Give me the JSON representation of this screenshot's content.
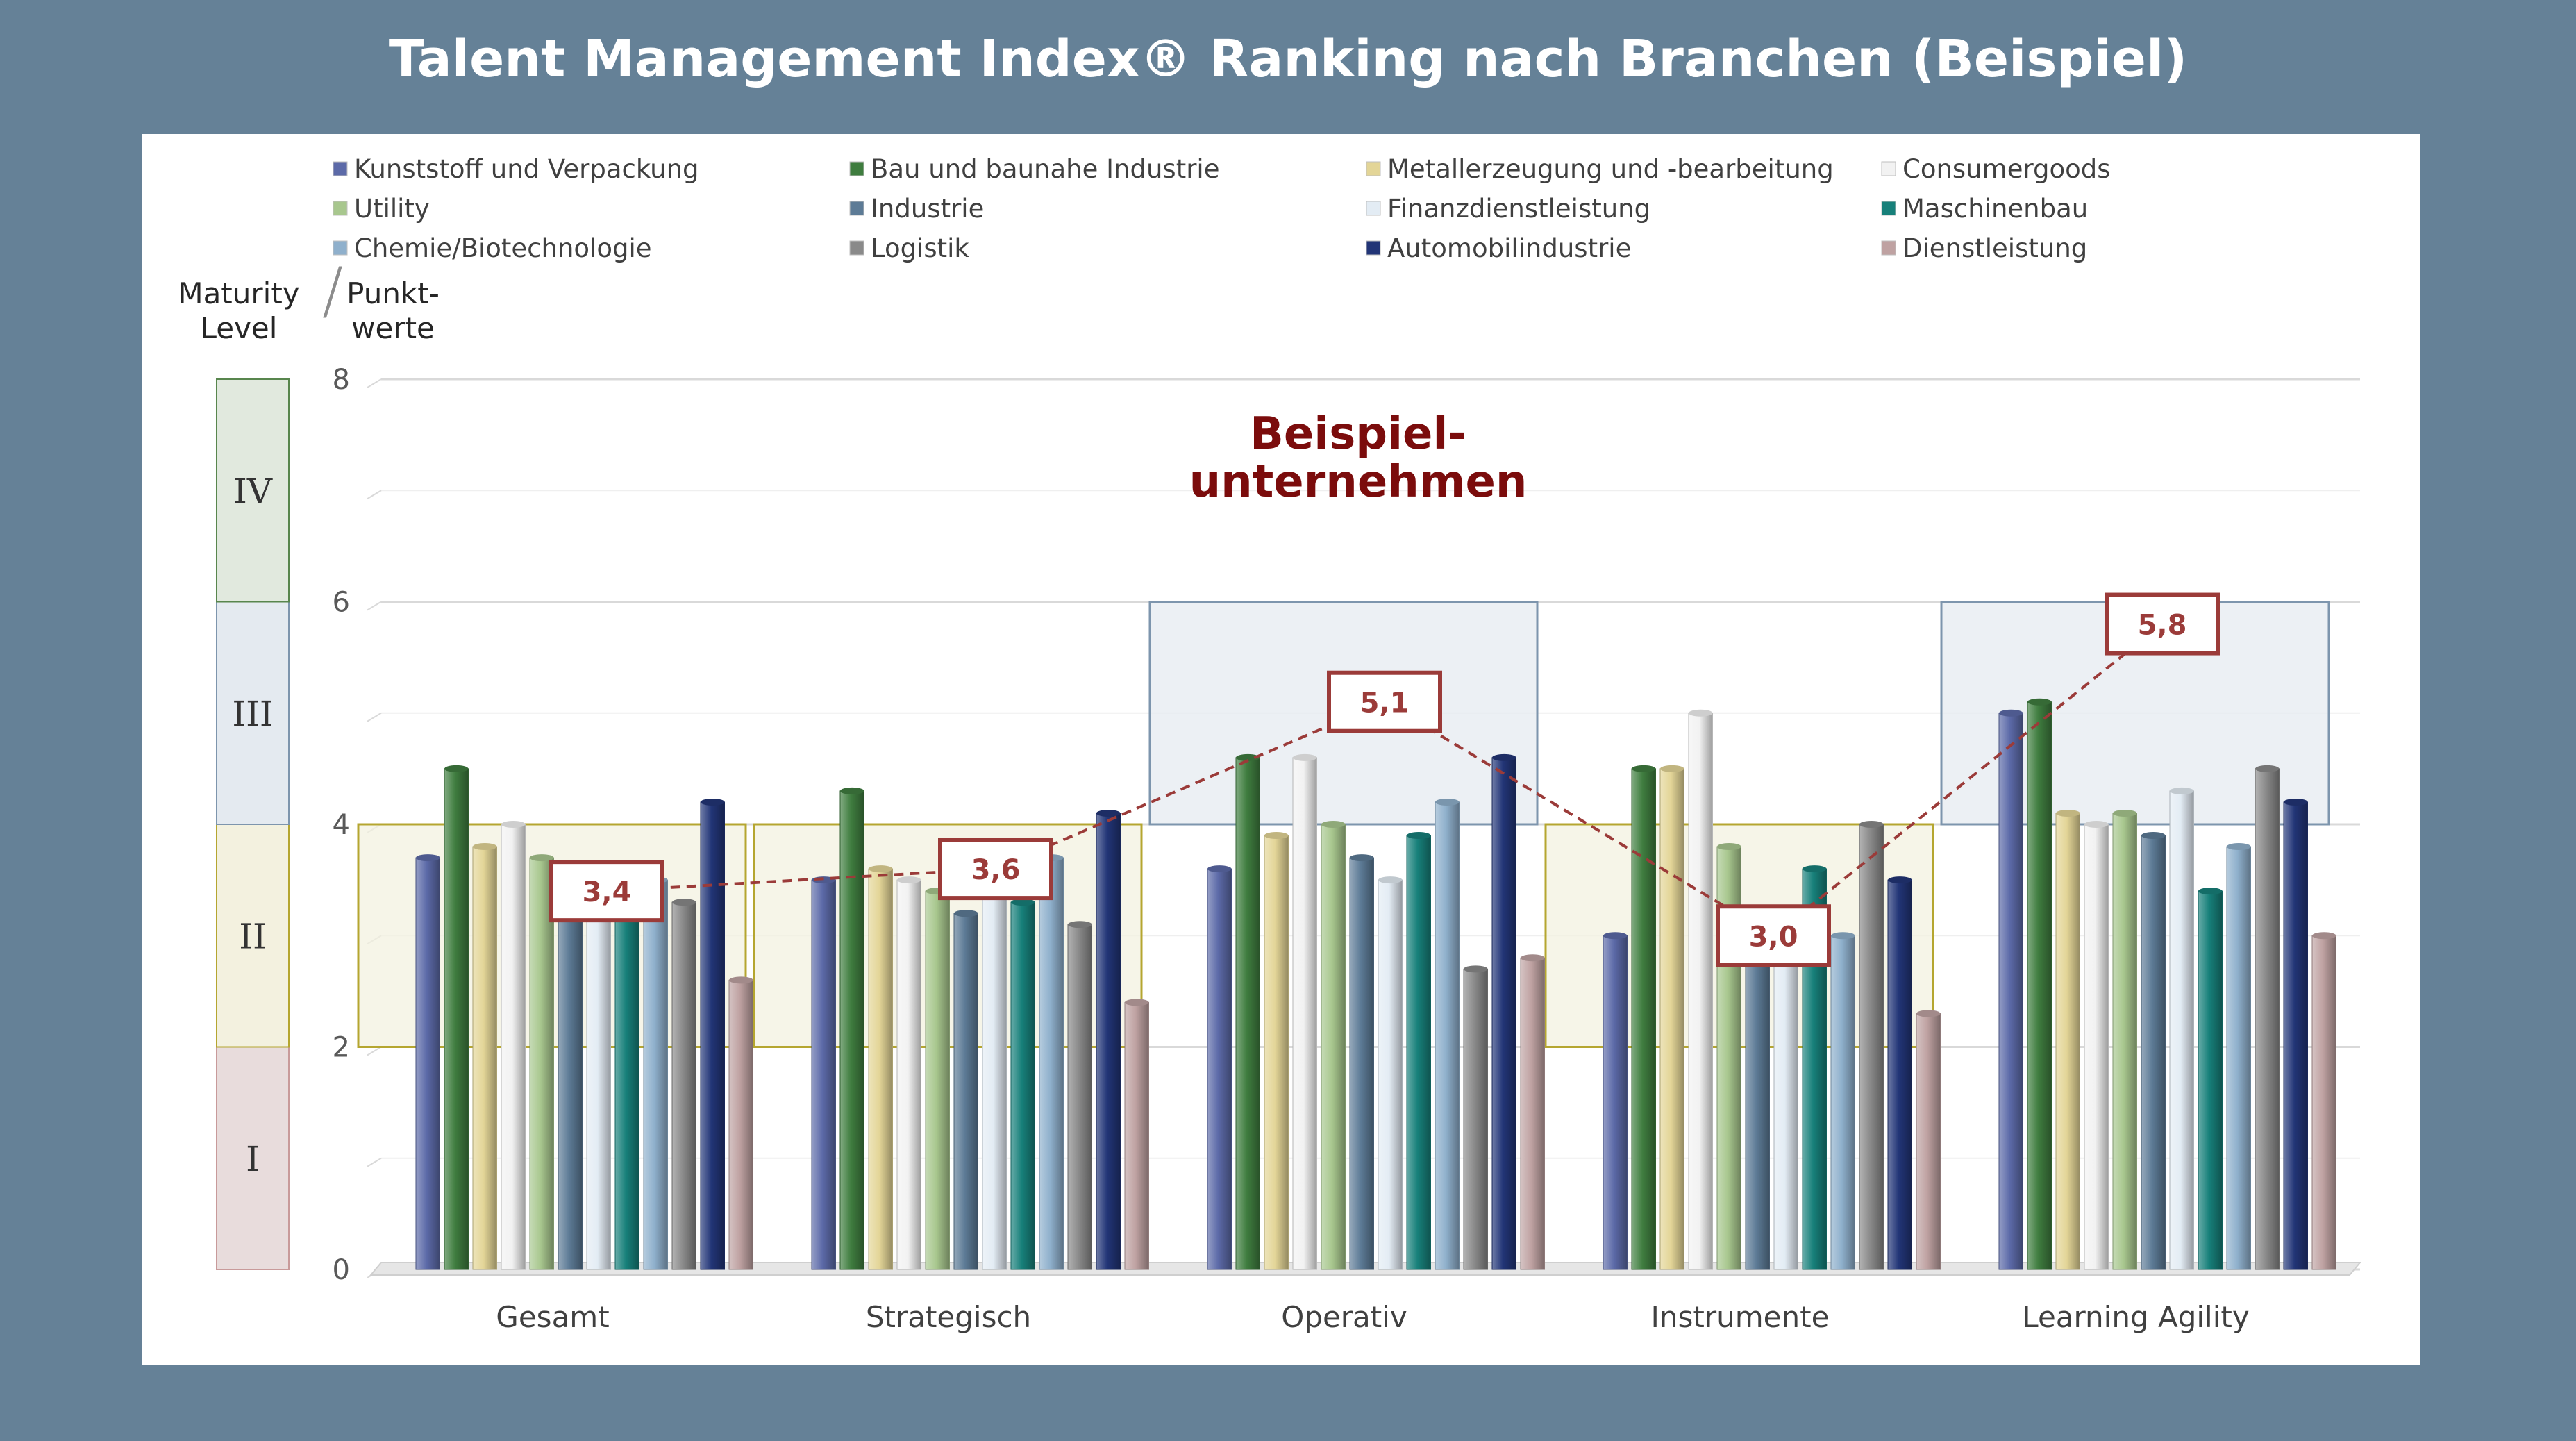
{
  "title": "Talent Management Index® Ranking nach Branchen (Beispiel)",
  "chart_data": {
    "type": "bar",
    "ylim": [
      0,
      8
    ],
    "yticks": [
      0,
      2,
      4,
      6,
      8
    ],
    "grid": true,
    "legend_position": "top",
    "axis_header_left": [
      "Maturity",
      "Level"
    ],
    "axis_header_separator": "/",
    "axis_header_right": [
      "Punkt-",
      "werte"
    ],
    "categories": [
      "Gesamt",
      "Strategisch",
      "Operativ",
      "Instrumente",
      "Learning Agility"
    ],
    "series": [
      {
        "name": "Kunststoff und Verpackung",
        "color": "#5c6aa8",
        "values": [
          3.7,
          3.5,
          3.6,
          3.0,
          5.0
        ]
      },
      {
        "name": "Bau und baunahe Industrie",
        "color": "#3f7d3f",
        "values": [
          4.5,
          4.3,
          4.6,
          4.5,
          5.1
        ]
      },
      {
        "name": "Metallerzeugung und -bearbeitung",
        "color": "#e3d597",
        "values": [
          3.8,
          3.6,
          3.9,
          4.5,
          4.1
        ]
      },
      {
        "name": "Consumergoods",
        "color": "#f2f2f2",
        "values": [
          4.0,
          3.5,
          4.6,
          5.0,
          4.0
        ]
      },
      {
        "name": "Utility",
        "color": "#a8c78e",
        "values": [
          3.7,
          3.4,
          4.0,
          3.8,
          4.1
        ]
      },
      {
        "name": "Industrie",
        "color": "#5d7b96",
        "values": [
          3.5,
          3.2,
          3.7,
          3.0,
          3.9
        ]
      },
      {
        "name": "Finanzdienstleistung",
        "color": "#e3ecf4",
        "values": [
          3.5,
          3.4,
          3.5,
          3.0,
          4.3
        ]
      },
      {
        "name": "Maschinenbau",
        "color": "#17807a",
        "values": [
          3.4,
          3.3,
          3.9,
          3.6,
          3.4
        ]
      },
      {
        "name": "Chemie/Biotechnologie",
        "color": "#8fb0cc",
        "values": [
          3.5,
          3.7,
          4.2,
          3.0,
          3.8
        ]
      },
      {
        "name": "Logistik",
        "color": "#8a8a8a",
        "values": [
          3.3,
          3.1,
          2.7,
          4.0,
          4.5
        ]
      },
      {
        "name": "Automobilindustrie",
        "color": "#223577",
        "values": [
          4.2,
          4.1,
          4.6,
          3.5,
          4.2
        ]
      },
      {
        "name": "Dienstleistung",
        "color": "#bfa2a2",
        "values": [
          2.6,
          2.4,
          2.8,
          2.3,
          3.0
        ]
      }
    ],
    "maturity_levels": [
      {
        "label": "I",
        "range": [
          0,
          2
        ],
        "color": "#e8dcdc",
        "border": "#c89a9a"
      },
      {
        "label": "II",
        "range": [
          2,
          4
        ],
        "color": "#f3f1df",
        "border": "#b5a630"
      },
      {
        "label": "III",
        "range": [
          4,
          6
        ],
        "color": "#e4eaf0",
        "border": "#7d95ad"
      },
      {
        "label": "IV",
        "range": [
          6,
          8
        ],
        "color": "#e1e9de",
        "border": "#58864d"
      }
    ],
    "category_level_bands": [
      "II",
      "II",
      "III",
      "II",
      "III"
    ],
    "example_company": {
      "label_line1": "Beispiel-",
      "label_line2": "unternehmen",
      "values": [
        3.4,
        3.6,
        5.1,
        3.0,
        5.8
      ],
      "value_labels": [
        "3,4",
        "3,6",
        "5,1",
        "3,0",
        "5,8"
      ],
      "color": "#9b3b39"
    }
  }
}
